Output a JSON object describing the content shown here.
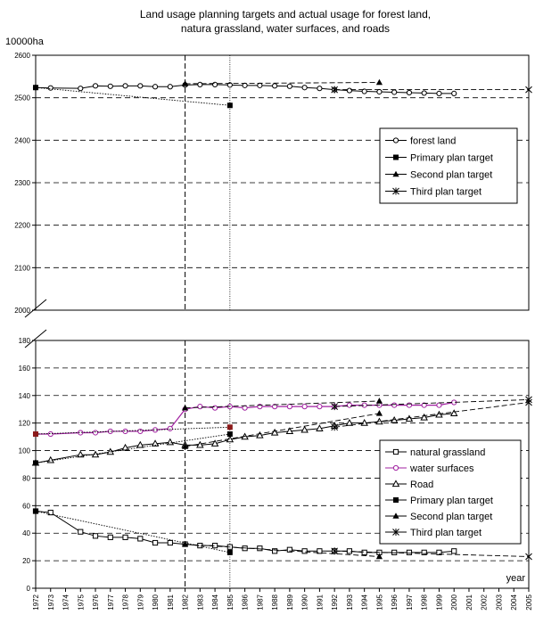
{
  "chart_data": [
    {
      "type": "line",
      "title": "Land usage planning targets and actual usage for forest land,\nnatura grassland, water surfaces, and roads",
      "ylabel": "10000ha",
      "ylim": [
        2000,
        2600
      ],
      "yticks": [
        2000,
        2100,
        2200,
        2300,
        2400,
        2500,
        2600
      ],
      "ytick_labels": [
        "2000",
        "2100",
        "2200",
        "2300",
        "2400",
        "2500",
        "2600"
      ],
      "x_range": [
        1972,
        2005
      ],
      "grid": "dashed-horizontal",
      "legend_position": "right-center",
      "series": [
        {
          "name": "forest land",
          "marker": "circle-open",
          "x": [
            1972,
            1973,
            1975,
            1976,
            1977,
            1978,
            1979,
            1980,
            1981,
            1982,
            1983,
            1984,
            1985,
            1986,
            1987,
            1988,
            1989,
            1990,
            1991,
            1992,
            1993,
            1994,
            1995,
            1996,
            1997,
            1998,
            1999,
            2000
          ],
          "y": [
            2524,
            2523,
            2522,
            2528,
            2527,
            2528,
            2528,
            2526,
            2526,
            2530,
            2531,
            2531,
            2530,
            2529,
            2529,
            2528,
            2527,
            2524,
            2522,
            2519,
            2517,
            2515,
            2514,
            2513,
            2512,
            2511,
            2510,
            2510
          ]
        },
        {
          "name": "Primary plan target",
          "marker": "square-filled",
          "x": [
            1972,
            1985
          ],
          "y": [
            2524,
            2482
          ]
        },
        {
          "name": "Second plan target",
          "marker": "triangle-filled",
          "x": [
            1982,
            1995
          ],
          "y": [
            2533,
            2536
          ]
        },
        {
          "name": "Third plan target",
          "marker": "star",
          "x": [
            1992,
            2005
          ],
          "y": [
            2519,
            2519
          ]
        }
      ]
    },
    {
      "type": "line",
      "xlabel": "year",
      "ylim": [
        0,
        180
      ],
      "yticks": [
        0,
        20,
        40,
        60,
        80,
        100,
        120,
        140,
        160,
        180
      ],
      "ytick_labels": [
        "0",
        "20",
        "40",
        "60",
        "80",
        "100",
        "120",
        "140",
        "160",
        "180"
      ],
      "x_range": [
        1972,
        2005
      ],
      "categories": [
        "1972",
        "1973",
        "1974",
        "1975",
        "1976",
        "1977",
        "1978",
        "1979",
        "1980",
        "1981",
        "1982",
        "1983",
        "1984",
        "1985",
        "1986",
        "1987",
        "1988",
        "1989",
        "1990",
        "1991",
        "1992",
        "1993",
        "1994",
        "1995",
        "1996",
        "1997",
        "1998",
        "1999",
        "2000",
        "2001",
        "2002",
        "2003",
        "2004",
        "2005"
      ],
      "grid": "dashed-horizontal",
      "legend_position": "bottom-right",
      "series": [
        {
          "name": "natural grassland",
          "marker": "square-open",
          "x": [
            1972,
            1973,
            1975,
            1976,
            1977,
            1978,
            1979,
            1980,
            1981,
            1982,
            1983,
            1984,
            1985,
            1986,
            1987,
            1988,
            1989,
            1990,
            1991,
            1992,
            1993,
            1994,
            1995,
            1996,
            1997,
            1998,
            1999,
            2000
          ],
          "y": [
            56,
            55,
            41,
            38,
            37,
            37,
            36,
            33,
            33,
            32,
            31,
            31,
            30,
            29,
            29,
            27,
            28,
            27,
            27,
            27,
            27,
            26,
            26,
            26,
            26,
            26,
            26,
            27
          ]
        },
        {
          "name": "water surfaces",
          "marker": "circle-open",
          "x": [
            1972,
            1973,
            1975,
            1976,
            1977,
            1978,
            1979,
            1980,
            1981,
            1982,
            1983,
            1984,
            1985,
            1986,
            1987,
            1988,
            1989,
            1990,
            1991,
            1992,
            1993,
            1994,
            1995,
            1996,
            1997,
            1998,
            1999,
            2000
          ],
          "y": [
            112,
            112,
            113,
            113,
            114,
            114,
            114,
            115,
            116,
            130,
            132,
            131,
            132,
            131,
            132,
            132,
            132,
            132,
            132,
            132,
            133,
            133,
            133,
            133,
            133,
            133,
            133,
            135
          ]
        },
        {
          "name": "Road",
          "marker": "triangle-open",
          "x": [
            1972,
            1973,
            1975,
            1976,
            1977,
            1978,
            1979,
            1980,
            1981,
            1982,
            1983,
            1984,
            1985,
            1986,
            1987,
            1988,
            1989,
            1990,
            1991,
            1992,
            1993,
            1994,
            1995,
            1996,
            1997,
            1998,
            1999,
            2000
          ],
          "y": [
            91,
            93,
            97,
            97,
            99,
            102,
            104,
            105,
            106,
            104,
            104,
            105,
            108,
            110,
            111,
            113,
            114,
            115,
            116,
            118,
            120,
            120,
            121,
            122,
            123,
            124,
            126,
            127
          ]
        },
        {
          "name": "Primary plan target",
          "marker": "square-filled",
          "x": [
            1972,
            1985
          ],
          "y": [
            112,
            117
          ],
          "x2": [
            1972,
            1985
          ],
          "y2": [
            56,
            26
          ],
          "x3": [
            1972,
            1985
          ],
          "y3": [
            91,
            112
          ]
        },
        {
          "name": "Second plan target",
          "marker": "triangle-filled",
          "x": [
            1982,
            1995
          ],
          "y": [
            131,
            136
          ],
          "x2": [
            1982,
            1995
          ],
          "y2": [
            32,
            23
          ],
          "x3": [
            1982,
            1995
          ],
          "y3": [
            103,
            127
          ]
        },
        {
          "name": "Third plan target",
          "marker": "star",
          "x": [
            1992,
            2005
          ],
          "y": [
            132,
            137
          ],
          "x2": [
            1992,
            2005
          ],
          "y2": [
            27,
            23
          ],
          "x3": [
            1992,
            2005
          ],
          "y3": [
            117,
            135
          ]
        }
      ]
    }
  ]
}
